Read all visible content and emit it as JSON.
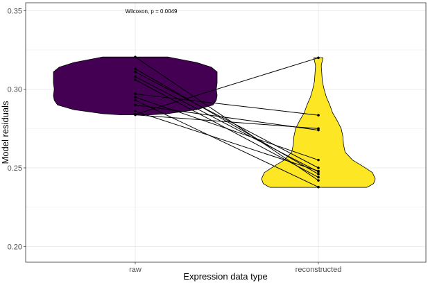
{
  "chart_data": {
    "type": "violin",
    "title": "",
    "xlabel": "Expression data type",
    "ylabel": "Model residuals",
    "categories": [
      "raw",
      "reconstructed"
    ],
    "ylim": [
      0.19,
      0.355
    ],
    "yticks": [
      0.2,
      0.25,
      0.3,
      0.35
    ],
    "ytick_labels": [
      "0.20",
      "0.25",
      "0.30",
      "0.35"
    ],
    "grid": true,
    "annotation": "Wilcoxon, p = 0.0049",
    "colors": {
      "raw": "#440154",
      "reconstructed": "#fde725",
      "outline": "#000000",
      "grid": "#ebebeb"
    },
    "violins": [
      {
        "category": "raw",
        "profile": [
          [
            0.2837,
            0.18
          ],
          [
            0.2845,
            0.4
          ],
          [
            0.287,
            0.75
          ],
          [
            0.29,
            0.95
          ],
          [
            0.293,
            0.99
          ],
          [
            0.296,
            1.0
          ],
          [
            0.3,
            0.99
          ],
          [
            0.304,
            1.0
          ],
          [
            0.308,
            1.0
          ],
          [
            0.311,
            1.0
          ],
          [
            0.314,
            0.93
          ],
          [
            0.317,
            0.75
          ],
          [
            0.3195,
            0.5
          ],
          [
            0.3205,
            0.4
          ]
        ]
      },
      {
        "category": "reconstructed",
        "profile": [
          [
            0.2376,
            0.85
          ],
          [
            0.2385,
            0.9
          ],
          [
            0.24,
            0.97
          ],
          [
            0.243,
            1.0
          ],
          [
            0.247,
            0.95
          ],
          [
            0.251,
            0.78
          ],
          [
            0.255,
            0.6
          ],
          [
            0.26,
            0.47
          ],
          [
            0.265,
            0.44
          ],
          [
            0.27,
            0.43
          ],
          [
            0.275,
            0.4
          ],
          [
            0.28,
            0.33
          ],
          [
            0.285,
            0.25
          ],
          [
            0.29,
            0.2
          ],
          [
            0.295,
            0.14
          ],
          [
            0.3,
            0.1
          ],
          [
            0.305,
            0.07
          ],
          [
            0.31,
            0.06
          ],
          [
            0.315,
            0.05
          ],
          [
            0.32,
            0.08
          ]
        ]
      }
    ],
    "pairs": [
      [
        0.3205,
        0.242
      ],
      [
        0.313,
        0.246
      ],
      [
        0.311,
        0.25
      ],
      [
        0.308,
        0.2475
      ],
      [
        0.306,
        0.244
      ],
      [
        0.297,
        0.2835
      ],
      [
        0.295,
        0.255
      ],
      [
        0.293,
        0.2378
      ],
      [
        0.29,
        0.274
      ],
      [
        0.286,
        0.248
      ],
      [
        0.284,
        0.32
      ],
      [
        0.2837,
        0.275
      ]
    ]
  }
}
